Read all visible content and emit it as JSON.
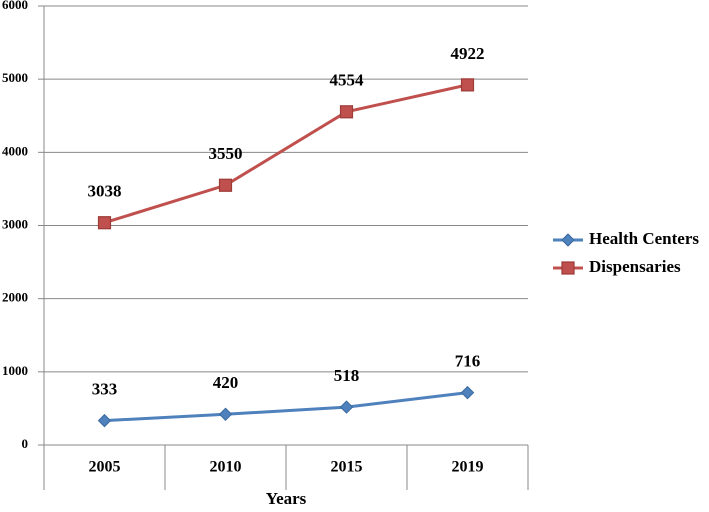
{
  "chart_data": {
    "type": "line",
    "x_label": "Years",
    "categories": [
      "2005",
      "2010",
      "2015",
      "2019"
    ],
    "series": [
      {
        "name": "Health Centers",
        "color": "#4f81bd",
        "marker": "diamond",
        "values": [
          333,
          420,
          518,
          716
        ]
      },
      {
        "name": "Dispensaries",
        "color": "#c0504d",
        "marker": "square",
        "values": [
          3038,
          3550,
          4554,
          4922
        ]
      }
    ],
    "ylim": [
      0,
      6000
    ],
    "yticks": [
      0,
      1000,
      2000,
      3000,
      4000,
      5000,
      6000
    ],
    "grid": true,
    "legend": "right",
    "data_labels": true
  }
}
